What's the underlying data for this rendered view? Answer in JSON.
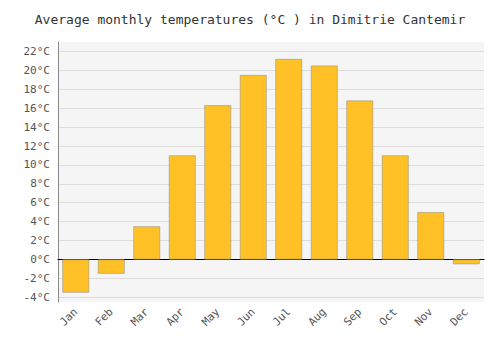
{
  "chart_data": {
    "type": "bar",
    "title": "Average monthly temperatures (°C ) in Dimitrie Cantemir",
    "categories": [
      "Jan",
      "Feb",
      "Mar",
      "Apr",
      "May",
      "Jun",
      "Jul",
      "Aug",
      "Sep",
      "Oct",
      "Nov",
      "Dec"
    ],
    "values": [
      -3.5,
      -1.5,
      3.5,
      11.0,
      16.3,
      19.5,
      21.2,
      20.5,
      16.8,
      11.0,
      5.0,
      -0.5
    ],
    "color": "#FFC125",
    "ylim": [
      -4.5,
      23
    ],
    "yticks": [
      {
        "value": -4,
        "label": "-4°C"
      },
      {
        "value": -2,
        "label": "-2°C"
      },
      {
        "value": 0,
        "label": "0°C"
      },
      {
        "value": 2,
        "label": "2°C"
      },
      {
        "value": 4,
        "label": "4°C"
      },
      {
        "value": 6,
        "label": "6°C"
      },
      {
        "value": 8,
        "label": "8°C"
      },
      {
        "value": 10,
        "label": "10°C"
      },
      {
        "value": 12,
        "label": "12°C"
      },
      {
        "value": 14,
        "label": "14°C"
      },
      {
        "value": 16,
        "label": "16°C"
      },
      {
        "value": 18,
        "label": "18°C"
      },
      {
        "value": 20,
        "label": "20°C"
      },
      {
        "value": 22,
        "label": "22°C"
      }
    ],
    "grid": true
  }
}
